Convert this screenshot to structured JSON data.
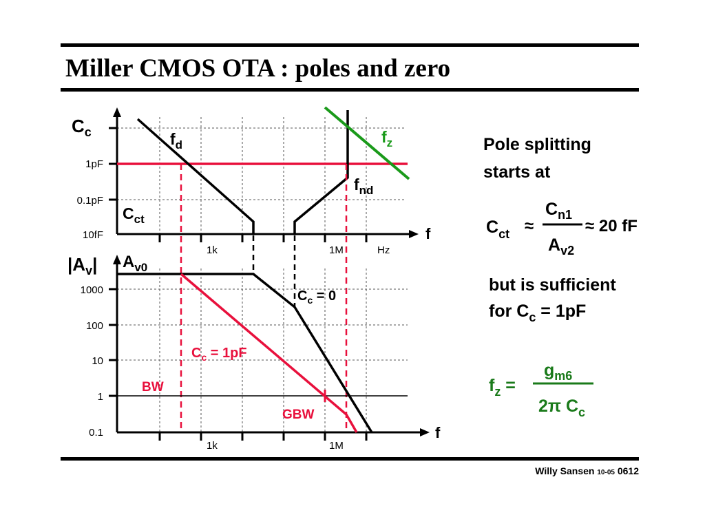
{
  "slide": {
    "title": "Miller CMOS OTA : poles and zero",
    "footer_author": "Willy Sansen",
    "footer_date": "10-05",
    "footer_page": "0612"
  },
  "top_plot": {
    "y_axis": "C",
    "y_axis_sub": "c",
    "y_ticks": [
      "1pF",
      "0.1pF",
      "10fF"
    ],
    "x_ticks": [
      "1k",
      "1M",
      "Hz"
    ],
    "x_axis": "f",
    "label_fd": "f",
    "label_fd_sub": "d",
    "label_fz": "f",
    "label_fz_sub": "z",
    "label_fnd": "f",
    "label_fnd_sub": "nd",
    "label_cct": "C",
    "label_cct_sub": "ct"
  },
  "bottom_plot": {
    "y_axis": "|A",
    "y_axis_sub": "v",
    "y_axis_end": "|",
    "label_av0": "A",
    "label_av0_sub": "v0",
    "y_ticks": [
      "1000",
      "100",
      "10",
      "1",
      "0.1"
    ],
    "x_ticks": [
      "1k",
      "1M"
    ],
    "x_axis": "f",
    "label_cc0": "C",
    "label_cc0_sub": "c",
    "label_cc0_val": " = 0",
    "label_cc1": "C",
    "label_cc1_sub": "c",
    "label_cc1_val": " = 1pF",
    "label_bw": "BW",
    "label_gbw": "GBW"
  },
  "side_text": {
    "line1": "Pole splitting",
    "line2": "starts at",
    "cct": "C",
    "cct_sub": "ct",
    "approx1": "≈",
    "cn1": "C",
    "cn1_sub": "n1",
    "approx2": "≈ 20 fF",
    "av2": "A",
    "av2_sub": "v2",
    "line3": "but is sufficient",
    "line4_a": "for C",
    "line4_sub": "c",
    "line4_b": " = 1pF",
    "fz": "f",
    "fz_sub": "z",
    "fz_eq": " =",
    "gm6": "g",
    "gm6_sub": "m6",
    "den": "2π C",
    "den_sub": "c"
  },
  "colors": {
    "red": "#e8103c",
    "green": "#1a9a1a",
    "dark_green": "#1a7a1a",
    "black": "#000000"
  }
}
